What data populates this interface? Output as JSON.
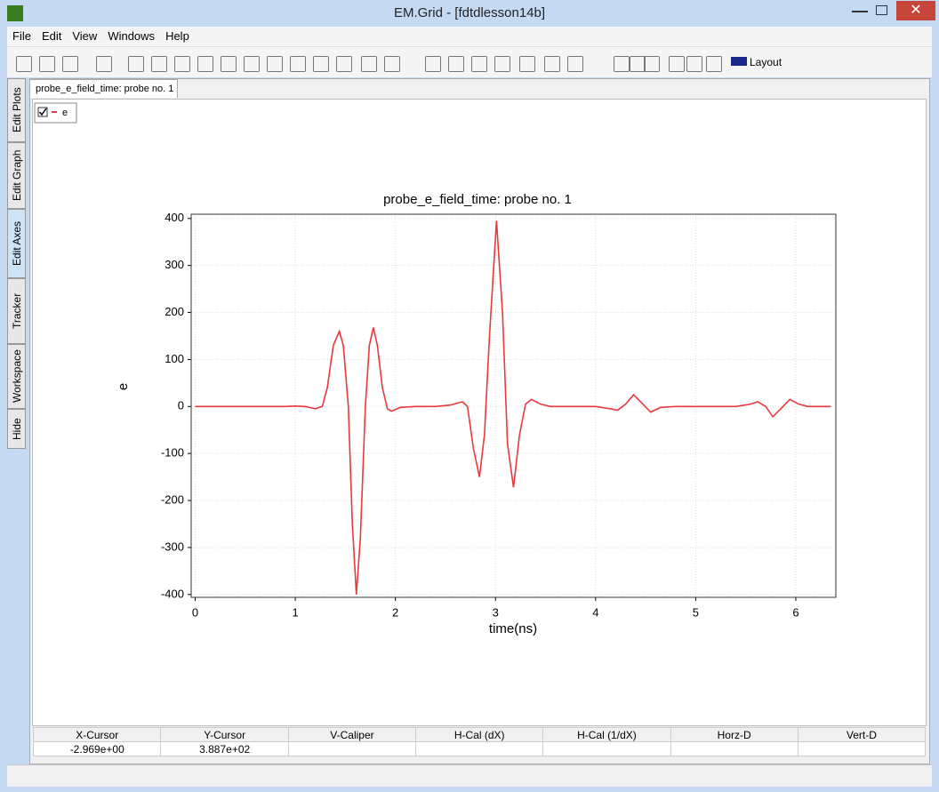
{
  "window": {
    "title": "EM.Grid - [fdtdlesson14b]"
  },
  "menu": [
    "File",
    "Edit",
    "View",
    "Windows",
    "Help"
  ],
  "toolbar": {
    "layout_button": "Layout"
  },
  "tab": "probe_e_field_time: probe no. 1",
  "side_tabs": [
    "Edit Plots",
    "Edit Graph",
    "Edit Axes",
    "Tracker",
    "Workspace",
    "Hide"
  ],
  "chart_data": {
    "type": "line",
    "title": "probe_e_field_time: probe no. 1",
    "x_label": "time(ns)",
    "y_label": "e",
    "x": [
      0,
      0.5,
      0.9,
      1.0,
      1.1,
      1.2,
      1.27,
      1.32,
      1.38,
      1.44,
      1.48,
      1.53,
      1.57,
      1.61,
      1.65,
      1.7,
      1.74,
      1.78,
      1.82,
      1.87,
      1.92,
      1.96,
      2.05,
      2.2,
      2.4,
      2.55,
      2.67,
      2.72,
      2.78,
      2.84,
      2.89,
      2.94,
      3.01,
      3.07,
      3.12,
      3.18,
      3.24,
      3.3,
      3.36,
      3.45,
      3.55,
      4.0,
      4.15,
      4.22,
      4.3,
      4.38,
      4.45,
      4.55,
      4.65,
      4.8,
      5.4,
      5.55,
      5.62,
      5.7,
      5.77,
      5.85,
      5.94,
      6.03,
      6.12,
      6.35
    ],
    "series": [
      {
        "name": "e",
        "color": "#e8393c",
        "values": [
          0,
          0,
          0,
          1,
          0,
          -5,
          0,
          40,
          130,
          160,
          130,
          0,
          -250,
          -400,
          -280,
          0,
          130,
          168,
          130,
          40,
          -5,
          -10,
          -2,
          0,
          0,
          3,
          10,
          0,
          -90,
          -150,
          -60,
          150,
          395,
          200,
          -80,
          -172,
          -60,
          5,
          15,
          5,
          0,
          0,
          -5,
          -8,
          5,
          25,
          10,
          -12,
          -2,
          0,
          0,
          5,
          10,
          0,
          -22,
          -5,
          15,
          5,
          0,
          0
        ]
      }
    ],
    "xlim": [
      -0.04,
      6.4
    ],
    "xticks": [
      0,
      1,
      2,
      3,
      4,
      5,
      6
    ],
    "ylim": [
      -406,
      409
    ],
    "yticks": [
      -400,
      -300,
      -200,
      -100,
      0,
      100,
      200,
      300,
      400
    ],
    "grid": true,
    "legend": "top-left"
  },
  "status_table": {
    "headers": [
      "X-Cursor",
      "Y-Cursor",
      "V-Caliper",
      "H-Cal (dX)",
      "H-Cal (1/dX)",
      "Horz-D",
      "Vert-D"
    ],
    "values": [
      "-2.969e+00",
      "3.887e+02"
    ]
  }
}
